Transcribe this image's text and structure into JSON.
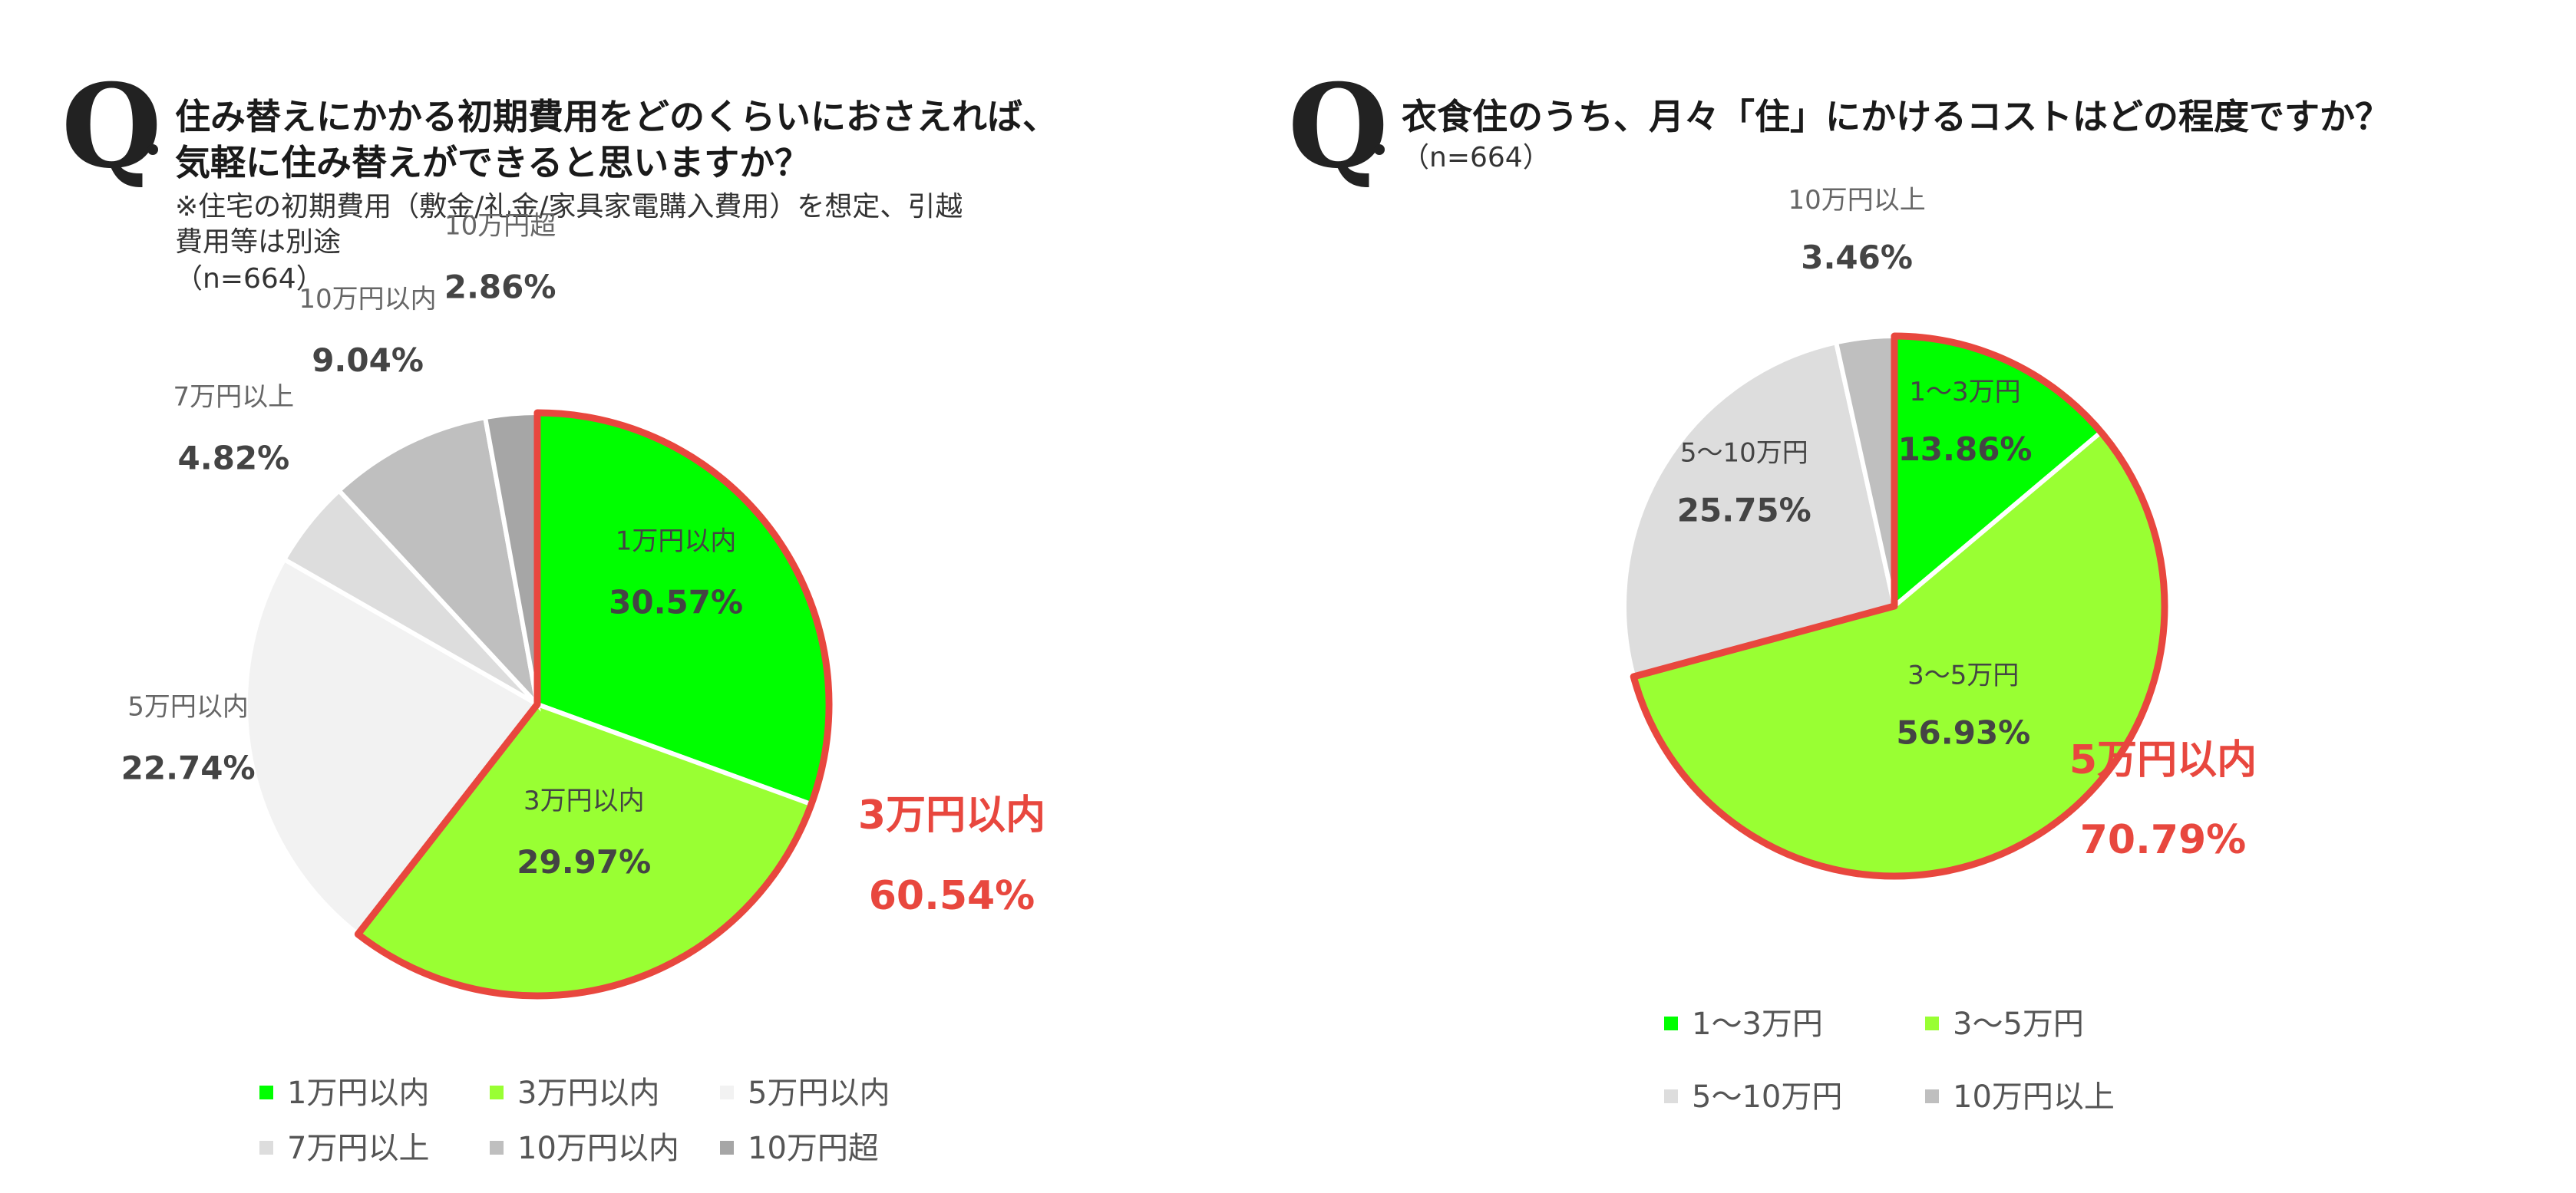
{
  "chart_data": [
    {
      "type": "pie",
      "title": "住み替えにかかる初期費用をどのくらいにおさえれば、気軽に住み替えができると思いますか？",
      "title_lines": [
        "住み替えにかかる初期費用をどのくらいにおさえれば、",
        "気軽に住み替えができると思いますか？"
      ],
      "note_lines": [
        "※住宅の初期費用（敷金/礼金/家具家電購入費用）を想定、引越",
        "費用等は別途"
      ],
      "n_label": "（n=664）",
      "slices": [
        {
          "label": "1万円以内",
          "value": 30.57,
          "value_label": "30.57%",
          "color": "#00ff00"
        },
        {
          "label": "3万円以内",
          "value": 29.97,
          "value_label": "29.97%",
          "color": "#99ff33"
        },
        {
          "label": "5万円以内",
          "value": 22.74,
          "value_label": "22.74%",
          "color": "#f2f2f2"
        },
        {
          "label": "7万円以上",
          "value": 4.82,
          "value_label": "4.82%",
          "color": "#dddddd"
        },
        {
          "label": "10万円以内",
          "value": 9.04,
          "value_label": "9.04%",
          "color": "#bfbfbf"
        },
        {
          "label": "10万円超",
          "value": 2.86,
          "value_label": "2.86%",
          "color": "#a6a6a6"
        }
      ],
      "highlight": {
        "label": "3万円以内",
        "value_label": "60.54%",
        "slices": [
          0,
          1
        ],
        "color": "#e8473e"
      },
      "legend": [
        "1万円以内",
        "3万円以内",
        "5万円以内",
        "7万円以上",
        "10万円以内",
        "10万円超"
      ],
      "legend_placement": "bottom"
    },
    {
      "type": "pie",
      "title": "衣食住のうち、月々「住」にかけるコストはどの程度ですか？",
      "title_lines": [
        "衣食住のうち、月々「住」にかけるコストはどの程度ですか？"
      ],
      "n_label": "（n=664）",
      "slices": [
        {
          "label": "1～3万円",
          "value": 13.86,
          "value_label": "13.86%",
          "color": "#00ff00"
        },
        {
          "label": "3～5万円",
          "value": 56.93,
          "value_label": "56.93%",
          "color": "#99ff33"
        },
        {
          "label": "5～10万円",
          "value": 25.75,
          "value_label": "25.75%",
          "color": "#dddddd"
        },
        {
          "label": "10万円以上",
          "value": 3.46,
          "value_label": "3.46%",
          "color": "#bfbfbf"
        }
      ],
      "highlight": {
        "label": "5万円以内",
        "value_label": "70.79%",
        "slices": [
          0,
          1
        ],
        "color": "#e8473e"
      },
      "legend": [
        "1～3万円",
        "3～5万円",
        "5～10万円",
        "10万円以上"
      ],
      "legend_placement": "bottom"
    }
  ]
}
